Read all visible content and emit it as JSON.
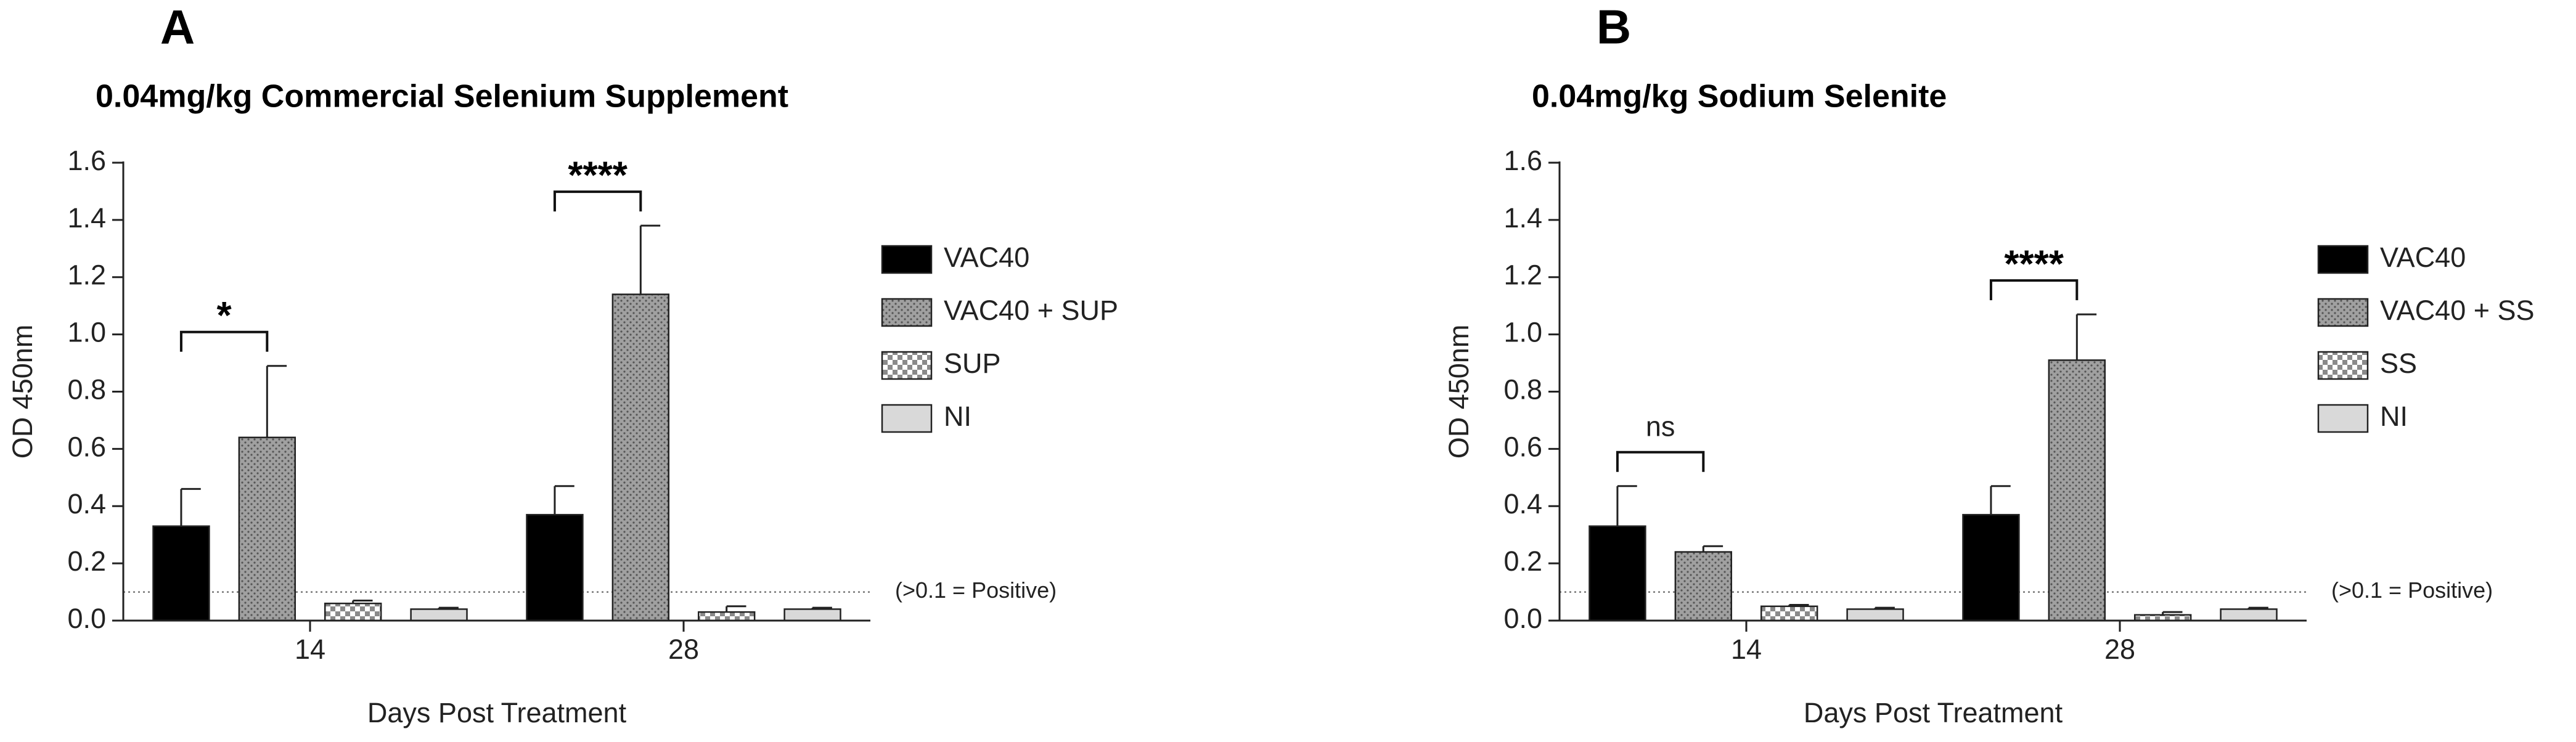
{
  "chart_data": [
    {
      "type": "bar",
      "panel_label": "A",
      "title": "0.04mg/kg Commercial Selenium Supplement",
      "x_label": "Days Post Treatment",
      "y_label": "OD 450nm",
      "categories": [
        "14",
        "28"
      ],
      "series": [
        {
          "name": "VAC40",
          "color": "#000000",
          "pattern": "solid",
          "values": [
            0.33,
            0.37
          ],
          "errors": [
            0.13,
            0.1
          ]
        },
        {
          "name": "VAC40 + SUP",
          "color": "#9a9a9a",
          "pattern": "dots",
          "values": [
            0.64,
            1.14
          ],
          "errors": [
            0.25,
            0.24
          ]
        },
        {
          "name": "SUP",
          "color": "#bdbdbd",
          "pattern": "checker",
          "values": [
            0.06,
            0.03
          ],
          "errors": [
            0.01,
            0.02
          ]
        },
        {
          "name": "NI",
          "color": "#d9d9d9",
          "pattern": "solid",
          "values": [
            0.04,
            0.04
          ],
          "errors": [
            0.005,
            0.005
          ]
        }
      ],
      "significance": [
        "*",
        "****"
      ],
      "threshold": {
        "value": 0.1,
        "label": "(>0.1 = Positive)"
      },
      "ylim": [
        0,
        1.6
      ],
      "yticks": [
        {
          "value": 0,
          "label": "0.0"
        },
        0.2,
        0.4,
        0.6,
        0.8,
        {
          "value": 1,
          "label": "1.0"
        },
        1.2,
        1.4,
        1.6
      ]
    },
    {
      "type": "bar",
      "panel_label": "B",
      "title": "0.04mg/kg Sodium Selenite",
      "x_label": "Days Post Treatment",
      "y_label": "OD 450nm",
      "categories": [
        "14",
        "28"
      ],
      "series": [
        {
          "name": "VAC40",
          "color": "#000000",
          "pattern": "solid",
          "values": [
            0.33,
            0.37
          ],
          "errors": [
            0.14,
            0.1
          ]
        },
        {
          "name": "VAC40 + SS",
          "color": "#9a9a9a",
          "pattern": "dots",
          "values": [
            0.24,
            0.91
          ],
          "errors": [
            0.02,
            0.16
          ]
        },
        {
          "name": "SS",
          "color": "#bdbdbd",
          "pattern": "checker",
          "values": [
            0.05,
            0.02
          ],
          "errors": [
            0.005,
            0.01
          ]
        },
        {
          "name": "NI",
          "color": "#d9d9d9",
          "pattern": "solid",
          "values": [
            0.04,
            0.04
          ],
          "errors": [
            0.005,
            0.005
          ]
        }
      ],
      "significance": [
        "ns",
        "****"
      ],
      "threshold": {
        "value": 0.1,
        "label": "(>0.1 = Positive)"
      },
      "ylim": [
        0,
        1.6
      ],
      "yticks": [
        {
          "value": 0,
          "label": "0.0"
        },
        0.2,
        0.4,
        0.6,
        0.8,
        {
          "value": 1,
          "label": "1.0"
        },
        1.2,
        1.4,
        1.6
      ]
    }
  ]
}
